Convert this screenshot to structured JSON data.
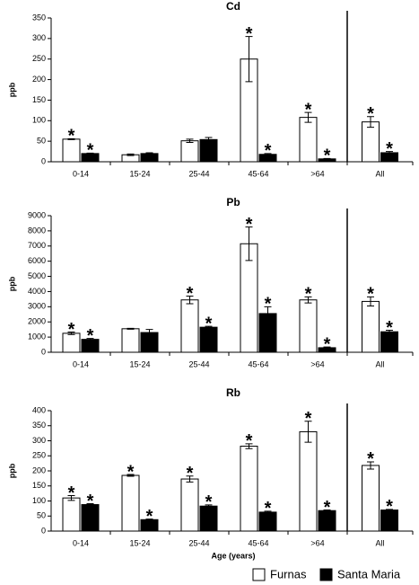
{
  "chart_data": [
    {
      "type": "bar",
      "title": "Cd",
      "y_label": "ppb",
      "categories": [
        "0-14",
        "15-24",
        "25-44",
        "45-64",
        ">64",
        "All"
      ],
      "series": [
        {
          "name": "Furnas",
          "color": "#ffffff",
          "values": [
            55,
            17,
            51,
            250,
            108,
            97
          ],
          "errors": [
            1,
            2,
            4,
            55,
            12,
            13
          ],
          "significance": [
            "*",
            null,
            null,
            "*",
            "*",
            "*"
          ]
        },
        {
          "name": "Santa Maria",
          "color": "#000000",
          "values": [
            20,
            20,
            54,
            18,
            7,
            22
          ],
          "errors": [
            1,
            2,
            5,
            2,
            1,
            3
          ],
          "significance": [
            "*",
            null,
            null,
            "*",
            "*",
            "*"
          ]
        }
      ],
      "ylim": [
        0,
        350
      ],
      "yticks": [
        0,
        50,
        100,
        150,
        200,
        250,
        300,
        350
      ]
    },
    {
      "type": "bar",
      "title": "Pb",
      "y_label": "ppb",
      "categories": [
        "0-14",
        "15-24",
        "25-44",
        "45-64",
        ">64",
        "All"
      ],
      "series": [
        {
          "name": "Furnas",
          "color": "#ffffff",
          "values": [
            1250,
            1550,
            3450,
            7150,
            3450,
            3350
          ],
          "errors": [
            80,
            30,
            250,
            1100,
            200,
            300
          ],
          "significance": [
            "*",
            null,
            "*",
            "*",
            "*",
            "*"
          ]
        },
        {
          "name": "Santa Maria",
          "color": "#000000",
          "values": [
            850,
            1300,
            1650,
            2550,
            300,
            1350
          ],
          "errors": [
            60,
            200,
            60,
            450,
            50,
            100
          ],
          "significance": [
            "*",
            null,
            "*",
            "*",
            "*",
            "*"
          ]
        }
      ],
      "ylim": [
        0,
        9000
      ],
      "yticks": [
        0,
        1000,
        2000,
        3000,
        4000,
        5000,
        6000,
        7000,
        8000,
        9000
      ]
    },
    {
      "type": "bar",
      "title": "Rb",
      "y_label": "ppb",
      "x_label": "Age (years)",
      "categories": [
        "0-14",
        "15-24",
        "25-44",
        "45-64",
        ">64",
        "All"
      ],
      "series": [
        {
          "name": "Furnas",
          "color": "#ffffff",
          "values": [
            110,
            185,
            173,
            282,
            330,
            218
          ],
          "errors": [
            8,
            3,
            10,
            8,
            35,
            12
          ],
          "significance": [
            "*",
            "*",
            "*",
            "*",
            "*",
            "*"
          ]
        },
        {
          "name": "Santa Maria",
          "color": "#000000",
          "values": [
            88,
            38,
            83,
            63,
            68,
            70
          ],
          "errors": [
            3,
            2,
            4,
            3,
            2,
            2
          ],
          "significance": [
            "*",
            "*",
            "*",
            "*",
            "*",
            "*"
          ]
        }
      ],
      "ylim": [
        0,
        400
      ],
      "yticks": [
        0,
        50,
        100,
        150,
        200,
        250,
        300,
        350,
        400
      ]
    }
  ]
}
